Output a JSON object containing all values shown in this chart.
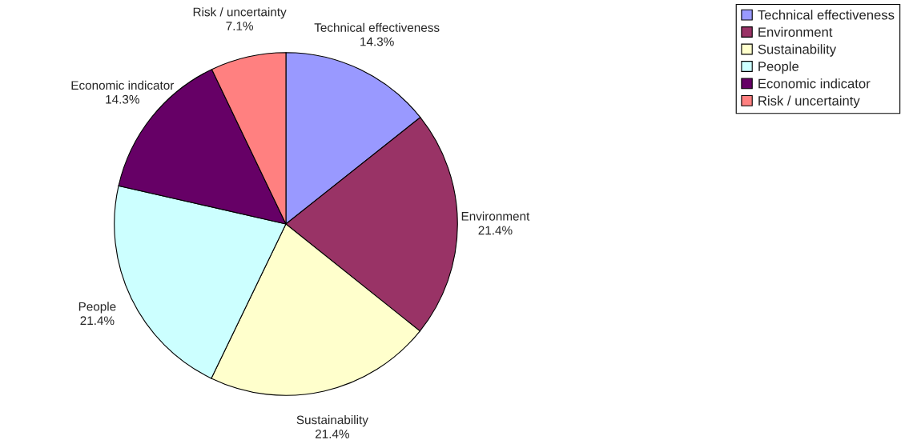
{
  "chart_data": {
    "type": "pie",
    "categories": [
      "Technical effectiveness",
      "Environment",
      "Sustainability",
      "People",
      "Economic indicator",
      "Risk / uncertainty"
    ],
    "values": [
      14.3,
      21.4,
      21.4,
      21.4,
      14.3,
      7.1
    ],
    "value_labels": [
      "14.3%",
      "21.4%",
      "21.4%",
      "21.4%",
      "14.3%",
      "7.1%"
    ],
    "colors": [
      "#9999ff",
      "#993366",
      "#ffffcc",
      "#ccffff",
      "#660066",
      "#ff8080"
    ],
    "legend": "top right"
  }
}
